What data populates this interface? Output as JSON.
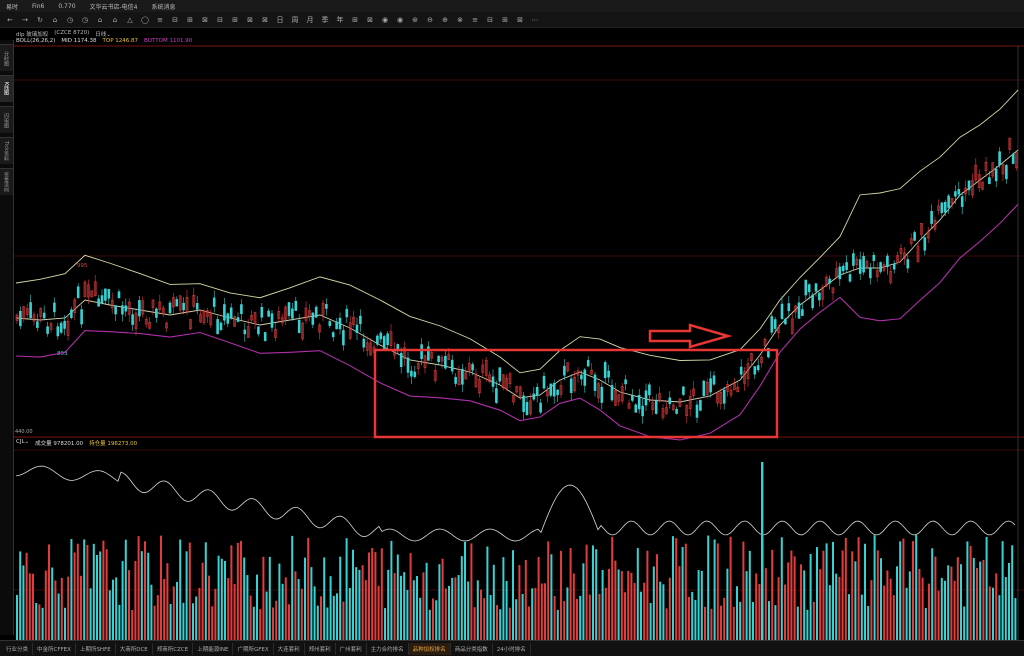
{
  "titlebar": {
    "app": "易时",
    "indicator": "Fin6",
    "value": "0.770",
    "menu_a": "文华云书店-电信4",
    "menu_b": "系统消息"
  },
  "toolbar": {
    "buttons": [
      "←",
      "→",
      "↻",
      "⌂",
      "◷",
      "◷",
      "⌂",
      "⌂",
      "△",
      "◯",
      "≡",
      "⊟",
      "⊞",
      "⊠",
      "⊟",
      "⊞",
      "⊠",
      "⊠",
      "日",
      "周",
      "月",
      "季",
      "年",
      "⊞",
      "⊠",
      "◉",
      "◉",
      "⊛",
      "⊖",
      "⊕",
      "⊗",
      "≡",
      "⊟",
      "⊞",
      "⊠",
      "⋯"
    ]
  },
  "header": {
    "contract": "dlp 玻璃加权",
    "code": "(CZCE 8720)",
    "mode": "日线"
  },
  "boll": {
    "label": "BOLL(26,26,2)",
    "mid": "MID 1174.38",
    "top": "TOP 1246.87",
    "bottom": "BOTTOM 1101.90"
  },
  "price_labels": {
    "high_mark": "995",
    "low_mark": "893",
    "sub_axis": "440.00"
  },
  "cjl": {
    "label": "CJL",
    "volume": "成交量 978201.00",
    "open_interest": "持仓量 196273.00"
  },
  "left_tabs": [
    "分时图",
    "K线图",
    "闪电图",
    "Tick资料",
    "资金流向"
  ],
  "bottom_tabs": [
    "行业分类",
    "中金所CFFEX",
    "上期所SHFE",
    "大商所DCE",
    "郑商所CZCE",
    "上期能源INE",
    "广期所GFEX",
    "大连套利",
    "郑州套利",
    "广州套利",
    "主力合约排名",
    "品种加权排名",
    "商品分类指数",
    "24小时排名"
  ],
  "bottom_tab_active": "品种加权排名",
  "colors": {
    "up": "#e23c3c",
    "down": "#39d2d2",
    "mid_line": "#d0d0b0",
    "upper_line": "#d8d8a8",
    "lower_line": "#b02fa8",
    "cjl_line": "#d8d8d8",
    "annotation": "#e83535",
    "grid": "#7a1414"
  },
  "chart_data": {
    "type": "candlestick",
    "annotation_box": "consolidation range (rectangle)",
    "annotation_arrow": "breakout arrow pointing right"
  }
}
